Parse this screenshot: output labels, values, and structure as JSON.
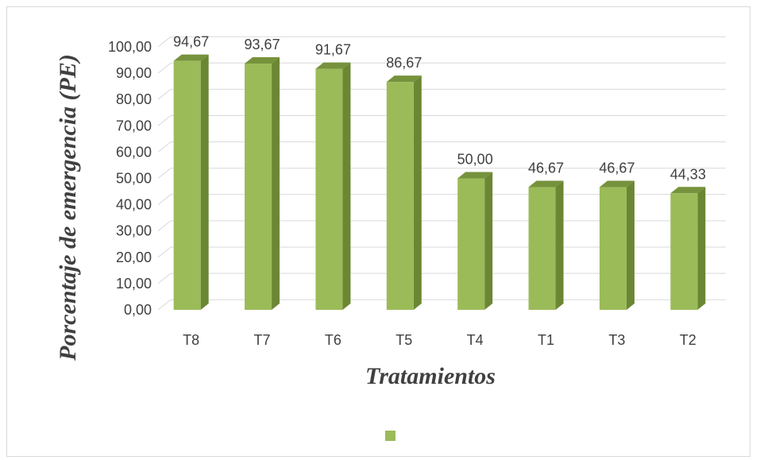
{
  "chart_data": {
    "type": "bar",
    "style": "3d-column",
    "categories": [
      "T8",
      "T7",
      "T6",
      "T5",
      "T4",
      "T1",
      "T3",
      "T2"
    ],
    "values": [
      94.67,
      93.67,
      91.67,
      86.67,
      50.0,
      46.67,
      46.67,
      44.33
    ],
    "data_labels": [
      "94,67",
      "93,67",
      "91,67",
      "86,67",
      "50,00",
      "46,67",
      "46,67",
      "44,33"
    ],
    "xlabel": "Tratamientos",
    "ylabel": "Porcentaje de emergencia  (PE)",
    "ylim": [
      0,
      100
    ],
    "ytick_labels": [
      "0,00",
      "10,00",
      "20,00",
      "30,00",
      "40,00",
      "50,00",
      "60,00",
      "70,00",
      "80,00",
      "90,00",
      "100,00"
    ],
    "grid": true,
    "legend_position": "bottom",
    "colors": {
      "bar_front": "#9bbb59",
      "bar_side": "#6b8733",
      "bar_top": "#76923c",
      "grid": "#d9d9d9",
      "text": "#404040"
    }
  }
}
